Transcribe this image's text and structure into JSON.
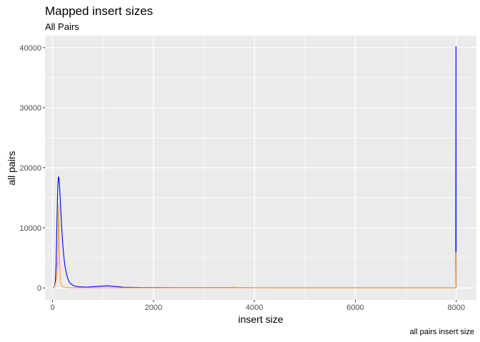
{
  "chart_data": {
    "type": "line",
    "title": "Mapped insert sizes",
    "subtitle": "All Pairs",
    "caption": "all pairs insert size",
    "xlabel": "insert size",
    "ylabel": "all pairs",
    "xlim": [
      -150,
      8400
    ],
    "ylim": [
      -2000,
      42000
    ],
    "x_ticks": [
      0,
      2000,
      4000,
      6000,
      8000
    ],
    "x_tick_labels": [
      "0",
      "2000",
      "4000",
      "6000",
      "8000"
    ],
    "y_ticks": [
      0,
      10000,
      20000,
      30000,
      40000
    ],
    "y_tick_labels": [
      "0",
      "10000",
      "20000",
      "30000",
      "40000"
    ],
    "grid": true,
    "legend": "none",
    "series": [
      {
        "color": "#0000ff",
        "x": [
          0,
          20,
          40,
          55,
          70,
          80,
          88,
          95,
          100,
          105,
          110,
          115,
          120,
          125,
          130,
          140,
          150,
          160,
          170,
          180,
          190,
          200,
          220,
          240,
          260,
          280,
          300,
          330,
          360,
          400,
          450,
          500,
          600,
          700,
          800,
          900,
          1000,
          1100,
          1200,
          1300,
          1400,
          1600,
          1800,
          2000,
          3000,
          3600,
          4000,
          5000,
          6000,
          7000,
          7990,
          7995,
          7996,
          7998,
          8000,
          8001
        ],
        "values": [
          0,
          50,
          300,
          1200,
          4000,
          8000,
          11500,
          14000,
          15800,
          17000,
          17800,
          18300,
          18500,
          18400,
          18000,
          16800,
          15200,
          13500,
          11800,
          10200,
          8800,
          7500,
          5500,
          4000,
          3000,
          2200,
          1600,
          1000,
          700,
          450,
          300,
          220,
          160,
          150,
          200,
          260,
          320,
          350,
          280,
          200,
          120,
          80,
          60,
          50,
          40,
          35,
          30,
          25,
          25,
          25,
          30,
          40200,
          40200,
          200,
          100,
          0
        ]
      },
      {
        "color": "#ff9f2e",
        "x": [
          0,
          30,
          50,
          65,
          80,
          90,
          95,
          100,
          105,
          110,
          115,
          120,
          125,
          130,
          135,
          140,
          150,
          160,
          170,
          180,
          200,
          250,
          300,
          400,
          600,
          800,
          1000,
          2000,
          3600,
          3605,
          3610,
          4000,
          6000,
          7990,
          7995,
          7996,
          7998,
          8000,
          8001
        ],
        "values": [
          0,
          100,
          500,
          1000,
          1500,
          3000,
          4200,
          3500,
          4200,
          8000,
          12000,
          13800,
          12500,
          9500,
          6500,
          4000,
          2000,
          1000,
          600,
          400,
          200,
          100,
          60,
          40,
          30,
          25,
          20,
          15,
          15,
          300,
          15,
          15,
          10,
          10,
          6000,
          6000,
          100,
          20,
          0
        ]
      }
    ]
  }
}
